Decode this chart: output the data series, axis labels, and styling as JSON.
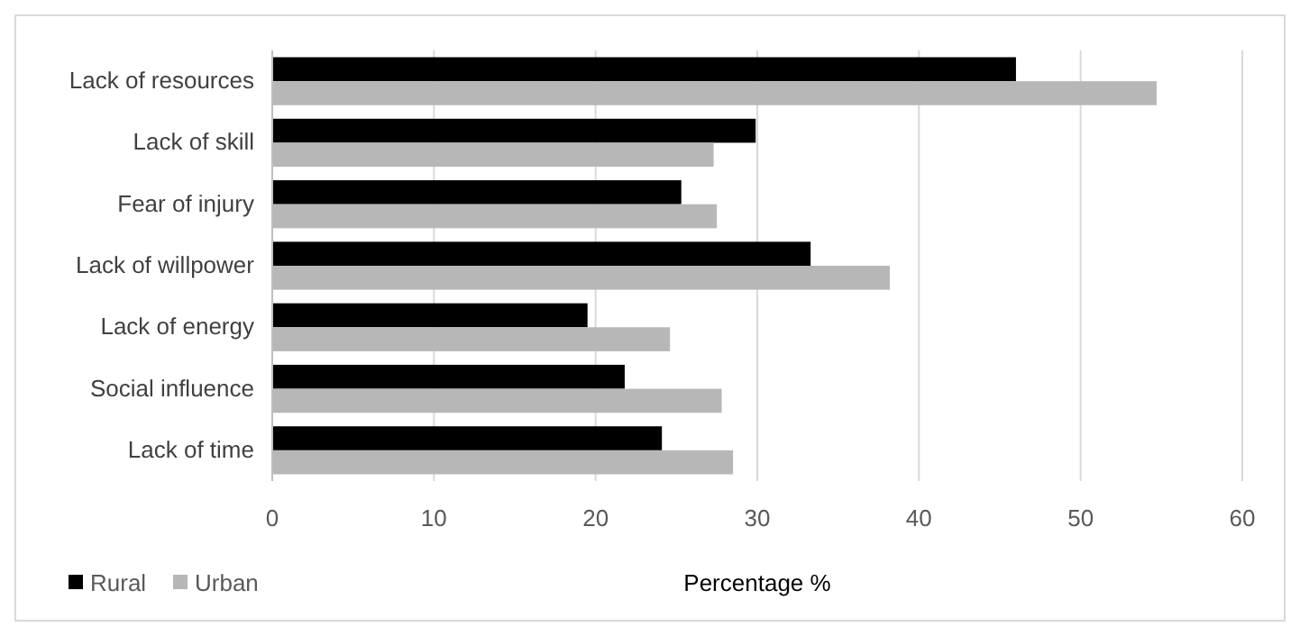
{
  "chart_data": {
    "type": "bar",
    "orientation": "horizontal",
    "xlabel": "Percentage %",
    "categories": [
      "Lack of resources",
      "Lack of skill",
      "Fear of injury",
      "Lack of willpower",
      "Lack of energy",
      "Social influence",
      "Lack of time"
    ],
    "series": [
      {
        "name": "Rural",
        "color": "#000000",
        "values": [
          46.0,
          29.9,
          25.3,
          33.3,
          19.5,
          21.8,
          24.1
        ]
      },
      {
        "name": "Urban",
        "color": "#b7b7b7",
        "values": [
          54.7,
          27.3,
          27.5,
          38.2,
          24.6,
          27.8,
          28.5
        ]
      }
    ],
    "xlim": [
      0,
      60
    ],
    "xticks": [
      0,
      10,
      20,
      30,
      40,
      50,
      60
    ],
    "grid": "x",
    "legend": "bottom left"
  }
}
